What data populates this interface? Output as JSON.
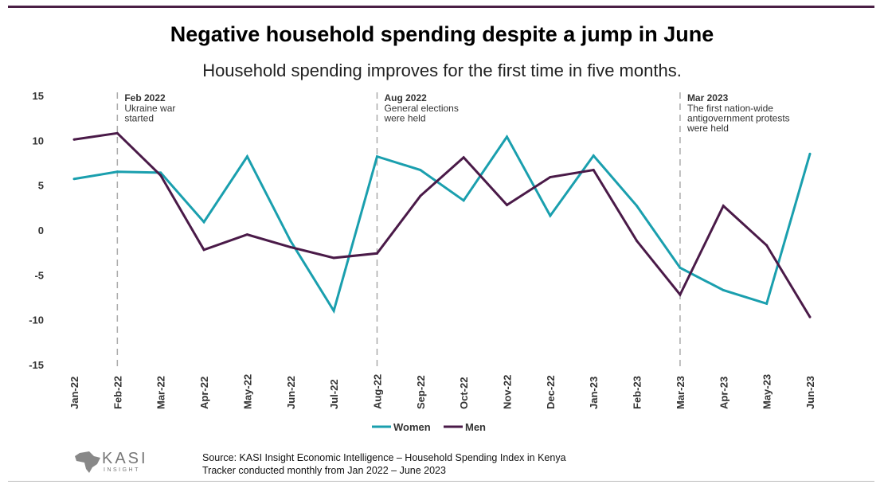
{
  "title": "Negative household spending despite a jump in June",
  "subtitle": "Household spending improves for the first time in five months.",
  "source_line1": "Source: KASI Insight Economic Intelligence – Household Spending Index in Kenya",
  "source_line2": "Tracker conducted monthly from  Jan 2022 –  June 2023",
  "logo_text": "KASI INSIGHT",
  "chart_data": {
    "type": "line",
    "categories": [
      "Jan-22",
      "Feb-22",
      "Mar-22",
      "Apr-22",
      "May-22",
      "Jun-22",
      "Jul-22",
      "Aug-22",
      "Sep-22",
      "Oct-22",
      "Nov-22",
      "Dec-22",
      "Jan-23",
      "Feb-23",
      "Mar-23",
      "Apr-23",
      "May-23",
      "Jun-23"
    ],
    "ylim": [
      -15,
      15
    ],
    "yticks": [
      15,
      10,
      5,
      0,
      -5,
      -10,
      -15
    ],
    "grid": false,
    "legend": "bottom",
    "series": [
      {
        "name": "Women",
        "color": "#1a9fae",
        "values": [
          5.7,
          6.5,
          6.4,
          0.9,
          8.2,
          -1.2,
          -9.0,
          8.2,
          6.7,
          3.3,
          10.4,
          1.6,
          8.3,
          2.7,
          -4.2,
          -6.7,
          -8.2,
          8.5
        ]
      },
      {
        "name": "Men",
        "color": "#4a1a48",
        "values": [
          10.1,
          10.8,
          6.1,
          -2.2,
          -0.5,
          -1.9,
          -3.1,
          -2.6,
          3.8,
          8.1,
          2.8,
          5.9,
          6.7,
          -1.2,
          -7.2,
          2.7,
          -1.7,
          -9.7
        ]
      }
    ],
    "annotations": [
      {
        "category": "Feb-22",
        "title": "Feb 2022",
        "lines": [
          "Ukraine war",
          "started"
        ]
      },
      {
        "category": "Aug-22",
        "title": "Aug 2022",
        "lines": [
          "General elections",
          "were held"
        ]
      },
      {
        "category": "Mar-23",
        "title": "Mar 2023",
        "lines": [
          "The first nation-wide",
          "antigovernment protests",
          "were held"
        ]
      }
    ]
  }
}
